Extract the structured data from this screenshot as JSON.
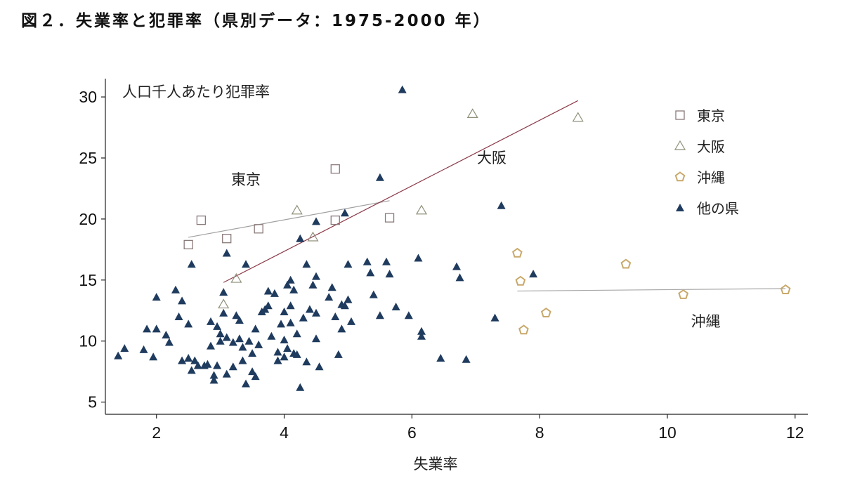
{
  "chart_data": {
    "type": "scatter",
    "title": "図２．失業率と犯罪率（県別データ：1975-2000 年）",
    "xlabel": "失業率",
    "ylabel": "人口千人あたり犯罪率",
    "xlim": [
      1.2,
      12.2
    ],
    "ylim": [
      4,
      31.5
    ],
    "xticks": [
      2,
      4,
      6,
      8,
      10,
      12
    ],
    "yticks": [
      5,
      10,
      15,
      20,
      25,
      30
    ],
    "grid": false,
    "legend_position": "top-right",
    "legend": [
      {
        "label": "東京",
        "marker": "square"
      },
      {
        "label": "大阪",
        "marker": "triangle-open"
      },
      {
        "label": "沖縄",
        "marker": "pentagon"
      },
      {
        "label": "他の県",
        "marker": "triangle-filled"
      }
    ],
    "annotations": [
      {
        "text": "東京",
        "x": 3.4,
        "y": 22.8
      },
      {
        "text": "大阪",
        "x": 7.25,
        "y": 24.6
      },
      {
        "text": "沖縄",
        "x": 10.6,
        "y": 11.2
      }
    ],
    "colors": {
      "tokyo": "#8a7a7a",
      "osaka": "#8f8f7a",
      "okinawa": "#c8a86a",
      "other": "#1f3b5e",
      "tokyo_line": "#a0a0a0",
      "osaka_line": "#8b3a4a",
      "okinawa_line": "#a8a8a8"
    },
    "series": [
      {
        "name": "東京",
        "marker": "square",
        "points": [
          [
            2.5,
            17.9
          ],
          [
            2.7,
            19.9
          ],
          [
            3.1,
            18.4
          ],
          [
            3.6,
            19.2
          ],
          [
            4.8,
            24.1
          ],
          [
            4.8,
            19.9
          ],
          [
            5.65,
            20.1
          ]
        ]
      },
      {
        "name": "大阪",
        "marker": "triangle-open",
        "points": [
          [
            3.05,
            13.0
          ],
          [
            3.25,
            15.1
          ],
          [
            4.2,
            20.7
          ],
          [
            4.45,
            18.5
          ],
          [
            6.15,
            20.7
          ],
          [
            6.95,
            28.6
          ],
          [
            8.6,
            28.3
          ]
        ]
      },
      {
        "name": "沖縄",
        "marker": "pentagon",
        "points": [
          [
            7.65,
            17.2
          ],
          [
            7.7,
            14.9
          ],
          [
            7.75,
            10.9
          ],
          [
            8.1,
            12.3
          ],
          [
            9.35,
            16.3
          ],
          [
            10.25,
            13.8
          ],
          [
            11.85,
            14.2
          ]
        ]
      },
      {
        "name": "他の県",
        "marker": "triangle-filled",
        "points": [
          [
            1.4,
            8.8
          ],
          [
            1.5,
            9.4
          ],
          [
            1.8,
            9.3
          ],
          [
            1.85,
            11.0
          ],
          [
            1.95,
            8.7
          ],
          [
            2.0,
            11.0
          ],
          [
            2.0,
            13.6
          ],
          [
            2.15,
            10.5
          ],
          [
            2.2,
            9.9
          ],
          [
            2.3,
            14.2
          ],
          [
            2.35,
            12.0
          ],
          [
            2.4,
            13.3
          ],
          [
            2.4,
            8.4
          ],
          [
            2.5,
            11.4
          ],
          [
            2.5,
            8.6
          ],
          [
            2.55,
            7.6
          ],
          [
            2.55,
            16.3
          ],
          [
            2.6,
            8.4
          ],
          [
            2.65,
            8.0
          ],
          [
            2.75,
            8.0
          ],
          [
            2.8,
            8.1
          ],
          [
            2.85,
            11.6
          ],
          [
            2.85,
            9.6
          ],
          [
            2.9,
            7.2
          ],
          [
            2.9,
            6.8
          ],
          [
            2.95,
            8.0
          ],
          [
            2.95,
            11.2
          ],
          [
            3.0,
            10.0
          ],
          [
            3.0,
            10.6
          ],
          [
            3.05,
            14.0
          ],
          [
            3.05,
            12.3
          ],
          [
            3.1,
            7.3
          ],
          [
            3.1,
            10.3
          ],
          [
            3.1,
            17.2
          ],
          [
            3.2,
            7.9
          ],
          [
            3.2,
            9.9
          ],
          [
            3.25,
            12.1
          ],
          [
            3.3,
            11.7
          ],
          [
            3.3,
            10.2
          ],
          [
            3.35,
            8.4
          ],
          [
            3.35,
            9.5
          ],
          [
            3.4,
            6.5
          ],
          [
            3.4,
            16.3
          ],
          [
            3.45,
            10.0
          ],
          [
            3.5,
            9.0
          ],
          [
            3.5,
            7.5
          ],
          [
            3.55,
            7.1
          ],
          [
            3.55,
            11.0
          ],
          [
            3.6,
            9.7
          ],
          [
            3.65,
            12.4
          ],
          [
            3.7,
            12.6
          ],
          [
            3.75,
            14.1
          ],
          [
            3.75,
            12.9
          ],
          [
            3.8,
            10.4
          ],
          [
            3.85,
            13.9
          ],
          [
            3.9,
            9.1
          ],
          [
            3.9,
            8.4
          ],
          [
            3.95,
            11.4
          ],
          [
            4.0,
            12.4
          ],
          [
            4.0,
            10.1
          ],
          [
            4.0,
            8.7
          ],
          [
            4.05,
            14.6
          ],
          [
            4.05,
            9.4
          ],
          [
            4.1,
            15.0
          ],
          [
            4.1,
            11.5
          ],
          [
            4.1,
            12.9
          ],
          [
            4.15,
            14.2
          ],
          [
            4.15,
            9.0
          ],
          [
            4.2,
            10.6
          ],
          [
            4.2,
            8.9
          ],
          [
            4.25,
            6.2
          ],
          [
            4.25,
            18.4
          ],
          [
            4.3,
            11.9
          ],
          [
            4.35,
            16.3
          ],
          [
            4.35,
            8.3
          ],
          [
            4.4,
            12.6
          ],
          [
            4.45,
            14.6
          ],
          [
            4.5,
            19.8
          ],
          [
            4.5,
            15.3
          ],
          [
            4.5,
            12.3
          ],
          [
            4.5,
            10.2
          ],
          [
            4.55,
            7.9
          ],
          [
            4.7,
            13.6
          ],
          [
            4.75,
            14.4
          ],
          [
            4.8,
            12.0
          ],
          [
            4.85,
            8.9
          ],
          [
            4.9,
            13.0
          ],
          [
            4.9,
            11.0
          ],
          [
            4.95,
            20.5
          ],
          [
            4.95,
            12.9
          ],
          [
            5.0,
            13.4
          ],
          [
            5.0,
            16.3
          ],
          [
            5.05,
            11.6
          ],
          [
            5.3,
            16.5
          ],
          [
            5.35,
            15.6
          ],
          [
            5.4,
            13.8
          ],
          [
            5.5,
            23.4
          ],
          [
            5.5,
            12.1
          ],
          [
            5.6,
            16.5
          ],
          [
            5.65,
            15.5
          ],
          [
            5.75,
            12.8
          ],
          [
            5.85,
            30.6
          ],
          [
            5.95,
            12.1
          ],
          [
            6.1,
            16.8
          ],
          [
            6.15,
            10.8
          ],
          [
            6.15,
            10.4
          ],
          [
            6.45,
            8.6
          ],
          [
            6.7,
            16.1
          ],
          [
            6.75,
            15.2
          ],
          [
            6.85,
            8.5
          ],
          [
            7.3,
            11.9
          ],
          [
            7.4,
            21.1
          ],
          [
            7.9,
            15.5
          ]
        ]
      }
    ],
    "trend_lines": [
      {
        "name": "東京",
        "from": [
          2.5,
          18.5
        ],
        "to": [
          5.65,
          21.5
        ]
      },
      {
        "name": "大阪",
        "from": [
          3.05,
          14.8
        ],
        "to": [
          8.6,
          29.7
        ]
      },
      {
        "name": "沖縄",
        "from": [
          7.65,
          14.1
        ],
        "to": [
          11.85,
          14.3
        ]
      }
    ]
  }
}
